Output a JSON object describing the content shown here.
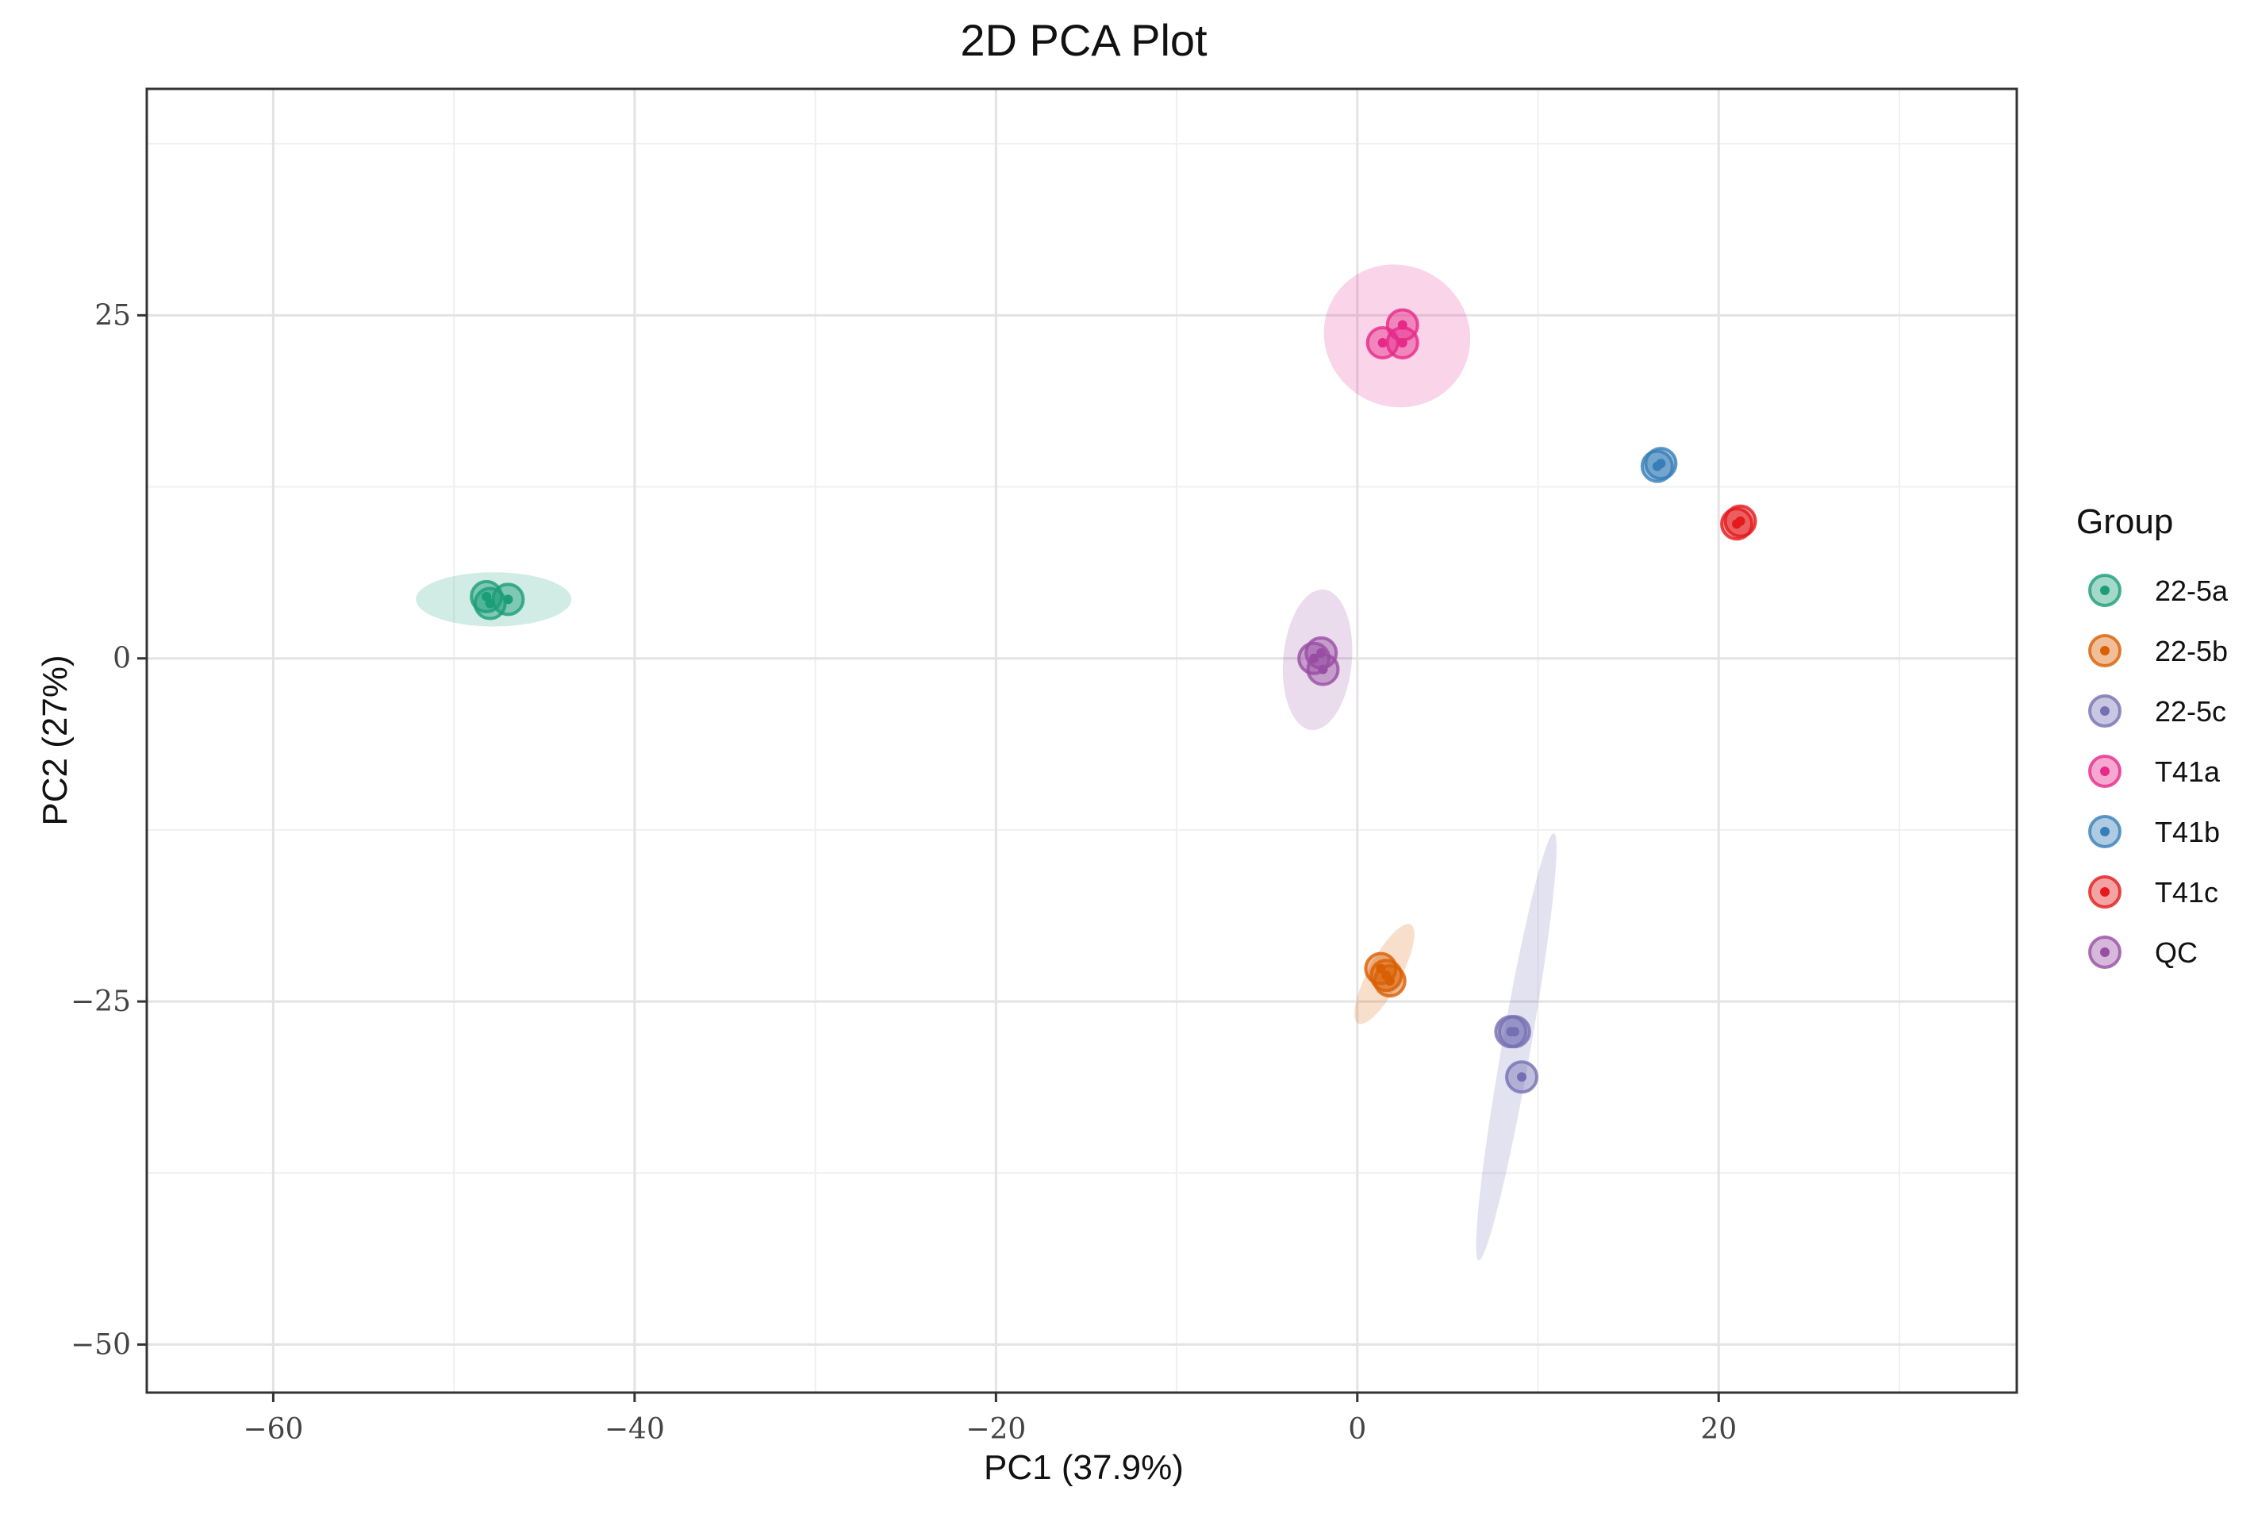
{
  "chart_data": {
    "type": "scatter",
    "title": "2D PCA Plot",
    "xlabel": "PC1 (37.9%)",
    "ylabel": "PC2 (27%)",
    "xlim": [
      -67,
      36.5
    ],
    "ylim": [
      -53.5,
      41.5
    ],
    "xticks": [
      -60,
      -40,
      -20,
      0,
      20
    ],
    "yticks": [
      -50,
      -25,
      0,
      25
    ],
    "xtick_labels": [
      "−60",
      "−40",
      "−20",
      "0",
      "20"
    ],
    "ytick_labels": [
      "−50",
      "−25",
      "0",
      "25"
    ],
    "x_minor_grid": [
      -50,
      -30,
      -10,
      10,
      30
    ],
    "y_minor_grid": [
      -37.5,
      -12.5,
      12.5,
      37.5
    ],
    "grid": true,
    "legend_title": "Group",
    "legend_position": "right",
    "series": [
      {
        "name": "22-5a",
        "color": "#1b9e77",
        "points": [
          [
            -48.2,
            4.5
          ],
          [
            -48.0,
            4.0
          ],
          [
            -47.0,
            4.3
          ]
        ],
        "ellipse": {
          "cx": -47.8,
          "cy": 4.3,
          "rx": 4.3,
          "ry": 1.5,
          "angle": 0
        }
      },
      {
        "name": "22-5b",
        "color": "#d95f02",
        "points": [
          [
            1.3,
            -22.6
          ],
          [
            1.6,
            -23.1
          ],
          [
            1.8,
            -23.5
          ]
        ],
        "ellipse": {
          "cx": 1.5,
          "cy": -23.0,
          "rx": 3.1,
          "ry": 0.9,
          "angle": -62
        }
      },
      {
        "name": "22-5c",
        "color": "#7570b3",
        "points": [
          [
            8.5,
            -27.2
          ],
          [
            8.7,
            -27.2
          ],
          [
            9.1,
            -30.5
          ]
        ],
        "ellipse": {
          "cx": 8.8,
          "cy": -28.3,
          "rx": 12.0,
          "ry": 0.8,
          "angle": -80
        }
      },
      {
        "name": "T41a",
        "color": "#e7298a",
        "points": [
          [
            1.4,
            23.0
          ],
          [
            2.5,
            24.3
          ],
          [
            2.5,
            23.0
          ]
        ],
        "ellipse": {
          "cx": 2.2,
          "cy": 23.5,
          "rx": 4.1,
          "ry": 3.9,
          "angle": 30
        }
      },
      {
        "name": "T41b",
        "color": "#377eb8",
        "points": [
          [
            16.6,
            14.0
          ],
          [
            16.8,
            14.2
          ]
        ],
        "ellipse": null
      },
      {
        "name": "T41c",
        "color": "#e41a1c",
        "points": [
          [
            21.0,
            9.8
          ],
          [
            21.2,
            10.0
          ]
        ],
        "ellipse": null
      },
      {
        "name": "QC",
        "color": "#984ea3",
        "points": [
          [
            -2.4,
            0.0
          ],
          [
            -2.0,
            0.4
          ],
          [
            -1.9,
            -0.8
          ]
        ],
        "ellipse": {
          "cx": -2.2,
          "cy": -0.1,
          "rx": 3.9,
          "ry": 1.9,
          "angle": -85
        }
      }
    ]
  }
}
